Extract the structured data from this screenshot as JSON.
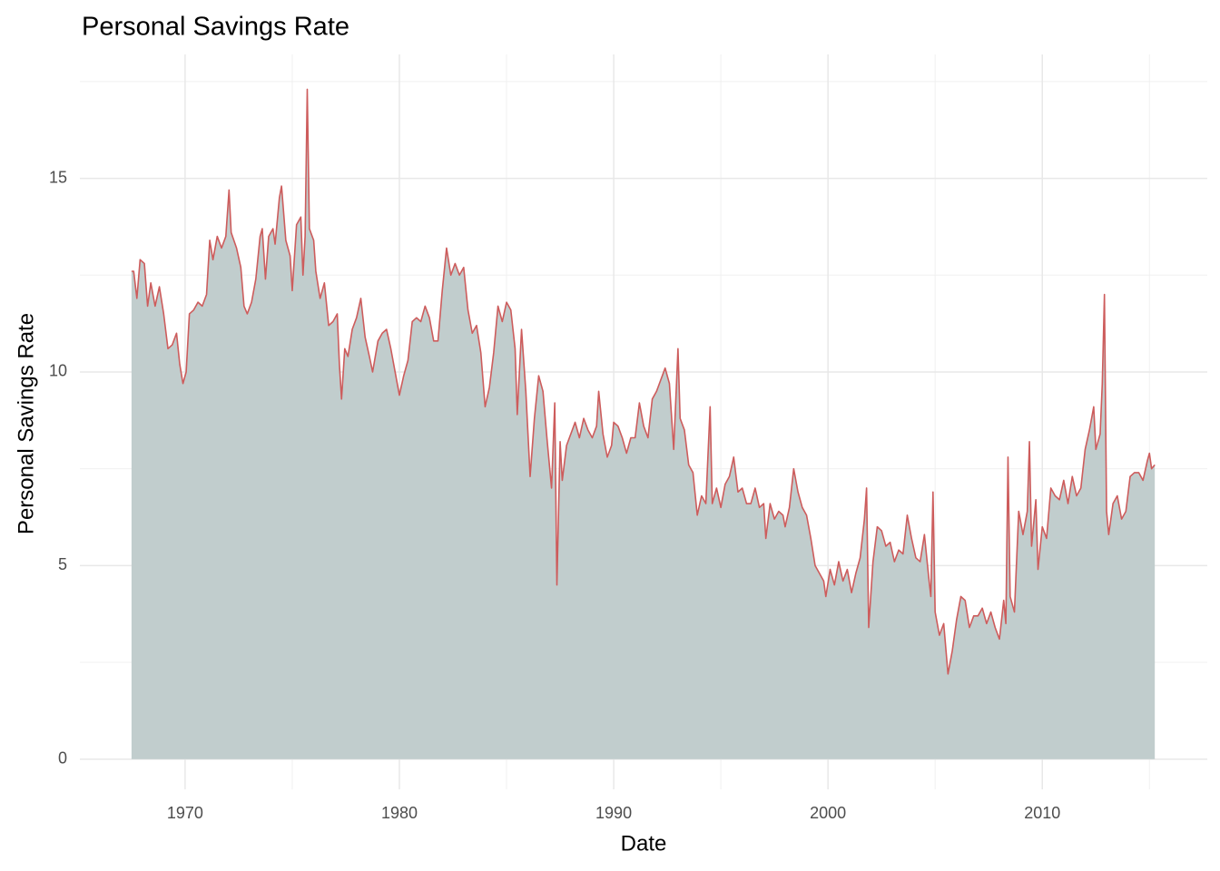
{
  "chart_data": {
    "type": "area",
    "title": "Personal Savings Rate",
    "x_label": "Date",
    "y_label": "Personal Savings Rate",
    "color": "#cd5c5c",
    "fill": "#c1cdcd",
    "grid": true,
    "xlim": [
      1965.09,
      2017.7
    ],
    "ylim": [
      -0.78,
      18.2
    ],
    "xticks": [
      1970,
      1980,
      1990,
      2000,
      2010
    ],
    "yticks": [
      0,
      5,
      10,
      15
    ],
    "x": [
      1967.5,
      1967.6,
      1967.75,
      1967.9,
      1968.1,
      1968.25,
      1968.4,
      1968.6,
      1968.8,
      1969.0,
      1969.2,
      1969.4,
      1969.6,
      1969.75,
      1969.9,
      1970.05,
      1970.2,
      1970.4,
      1970.6,
      1970.8,
      1971.0,
      1971.15,
      1971.3,
      1971.5,
      1971.7,
      1971.9,
      1972.05,
      1972.15,
      1972.4,
      1972.6,
      1972.75,
      1972.9,
      1973.1,
      1973.3,
      1973.5,
      1973.6,
      1973.75,
      1973.9,
      1974.1,
      1974.2,
      1974.4,
      1974.5,
      1974.7,
      1974.9,
      1975.0,
      1975.2,
      1975.4,
      1975.5,
      1975.6,
      1975.7,
      1975.8,
      1976.0,
      1976.1,
      1976.3,
      1976.5,
      1976.7,
      1976.9,
      1977.1,
      1977.2,
      1977.3,
      1977.45,
      1977.6,
      1977.8,
      1978.0,
      1978.2,
      1978.4,
      1978.6,
      1978.75,
      1979.0,
      1979.2,
      1979.4,
      1979.6,
      1979.8,
      1980.0,
      1980.2,
      1980.4,
      1980.6,
      1980.8,
      1981.0,
      1981.2,
      1981.4,
      1981.6,
      1981.8,
      1982.0,
      1982.2,
      1982.4,
      1982.6,
      1982.8,
      1983.0,
      1983.2,
      1983.4,
      1983.6,
      1983.8,
      1984.0,
      1984.2,
      1984.4,
      1984.6,
      1984.8,
      1985.0,
      1985.2,
      1985.4,
      1985.5,
      1985.7,
      1985.9,
      1986.1,
      1986.3,
      1986.5,
      1986.7,
      1986.9,
      1987.1,
      1987.25,
      1987.35,
      1987.5,
      1987.6,
      1987.8,
      1988.0,
      1988.2,
      1988.4,
      1988.6,
      1988.8,
      1989.0,
      1989.2,
      1989.3,
      1989.5,
      1989.7,
      1989.9,
      1990.0,
      1990.2,
      1990.4,
      1990.6,
      1990.8,
      1991.0,
      1991.2,
      1991.4,
      1991.6,
      1991.8,
      1992.0,
      1992.2,
      1992.4,
      1992.6,
      1992.8,
      1993.0,
      1993.1,
      1993.3,
      1993.5,
      1993.7,
      1993.9,
      1994.1,
      1994.3,
      1994.5,
      1994.6,
      1994.8,
      1995.0,
      1995.2,
      1995.4,
      1995.6,
      1995.8,
      1996.0,
      1996.2,
      1996.4,
      1996.6,
      1996.8,
      1997.0,
      1997.1,
      1997.3,
      1997.5,
      1997.7,
      1997.9,
      1998.0,
      1998.2,
      1998.4,
      1998.6,
      1998.8,
      1999.0,
      1999.2,
      1999.4,
      1999.6,
      1999.8,
      1999.9,
      2000.1,
      2000.3,
      2000.5,
      2000.7,
      2000.9,
      2001.1,
      2001.3,
      2001.5,
      2001.7,
      2001.8,
      2001.9,
      2002.1,
      2002.3,
      2002.5,
      2002.7,
      2002.9,
      2003.1,
      2003.3,
      2003.5,
      2003.7,
      2003.9,
      2004.1,
      2004.3,
      2004.5,
      2004.7,
      2004.8,
      2004.9,
      2005.0,
      2005.2,
      2005.4,
      2005.6,
      2005.8,
      2006.0,
      2006.2,
      2006.4,
      2006.6,
      2006.8,
      2007.0,
      2007.2,
      2007.4,
      2007.6,
      2007.8,
      2008.0,
      2008.2,
      2008.3,
      2008.4,
      2008.5,
      2008.7,
      2008.9,
      2009.1,
      2009.3,
      2009.4,
      2009.5,
      2009.7,
      2009.8,
      2010.0,
      2010.2,
      2010.4,
      2010.6,
      2010.8,
      2011.0,
      2011.2,
      2011.4,
      2011.6,
      2011.8,
      2012.0,
      2012.2,
      2012.4,
      2012.5,
      2012.7,
      2012.8,
      2012.9,
      2013.0,
      2013.1,
      2013.3,
      2013.5,
      2013.7,
      2013.9,
      2014.1,
      2014.3,
      2014.5,
      2014.7,
      2014.9,
      2015.0,
      2015.1,
      2015.25
    ],
    "values": [
      12.6,
      12.6,
      11.9,
      12.9,
      12.8,
      11.7,
      12.3,
      11.7,
      12.2,
      11.5,
      10.6,
      10.7,
      11.0,
      10.2,
      9.7,
      10.0,
      11.5,
      11.6,
      11.8,
      11.7,
      12.0,
      13.4,
      12.9,
      13.5,
      13.2,
      13.5,
      14.7,
      13.6,
      13.2,
      12.7,
      11.7,
      11.5,
      11.8,
      12.4,
      13.5,
      13.7,
      12.4,
      13.5,
      13.7,
      13.3,
      14.5,
      14.8,
      13.4,
      13.0,
      12.1,
      13.8,
      14.0,
      12.5,
      13.5,
      17.3,
      13.7,
      13.4,
      12.6,
      11.9,
      12.3,
      11.2,
      11.3,
      11.5,
      10.2,
      9.3,
      10.6,
      10.4,
      11.1,
      11.4,
      11.9,
      10.9,
      10.4,
      10.0,
      10.8,
      11.0,
      11.1,
      10.6,
      10.0,
      9.4,
      9.9,
      10.3,
      11.3,
      11.4,
      11.3,
      11.7,
      11.4,
      10.8,
      10.8,
      12.1,
      13.2,
      12.5,
      12.8,
      12.5,
      12.7,
      11.6,
      11.0,
      11.2,
      10.5,
      9.1,
      9.6,
      10.5,
      11.7,
      11.3,
      11.8,
      11.6,
      10.6,
      8.9,
      11.1,
      9.5,
      7.3,
      8.8,
      9.9,
      9.5,
      8.2,
      7.0,
      9.2,
      4.5,
      8.2,
      7.2,
      8.1,
      8.4,
      8.7,
      8.3,
      8.8,
      8.5,
      8.3,
      8.6,
      9.5,
      8.4,
      7.8,
      8.1,
      8.7,
      8.6,
      8.3,
      7.9,
      8.3,
      8.3,
      9.2,
      8.6,
      8.3,
      9.3,
      9.5,
      9.8,
      10.1,
      9.7,
      8.0,
      10.6,
      8.8,
      8.5,
      7.6,
      7.4,
      6.3,
      6.8,
      6.6,
      9.1,
      6.6,
      7.0,
      6.5,
      7.1,
      7.3,
      7.8,
      6.9,
      7.0,
      6.6,
      6.6,
      7.0,
      6.5,
      6.6,
      5.7,
      6.6,
      6.2,
      6.4,
      6.3,
      6.0,
      6.5,
      7.5,
      6.9,
      6.5,
      6.3,
      5.7,
      5.0,
      4.8,
      4.6,
      4.2,
      4.9,
      4.5,
      5.1,
      4.6,
      4.9,
      4.3,
      4.8,
      5.2,
      6.2,
      7.0,
      3.4,
      5.1,
      6.0,
      5.9,
      5.5,
      5.6,
      5.1,
      5.4,
      5.3,
      6.3,
      5.7,
      5.2,
      5.1,
      5.8,
      4.7,
      4.2,
      6.9,
      3.8,
      3.2,
      3.5,
      2.2,
      2.8,
      3.6,
      4.2,
      4.1,
      3.4,
      3.7,
      3.7,
      3.9,
      3.5,
      3.8,
      3.4,
      3.1,
      4.1,
      3.5,
      7.8,
      4.2,
      3.8,
      6.4,
      5.8,
      6.4,
      8.2,
      5.5,
      6.7,
      4.9,
      6.0,
      5.7,
      7.0,
      6.8,
      6.7,
      7.2,
      6.6,
      7.3,
      6.8,
      7.0,
      8.0,
      8.5,
      9.1,
      8.0,
      8.4,
      9.7,
      12.0,
      6.4,
      5.8,
      6.6,
      6.8,
      6.2,
      6.4,
      7.3,
      7.4,
      7.4,
      7.2,
      7.7,
      7.9,
      7.5,
      7.6
    ]
  }
}
